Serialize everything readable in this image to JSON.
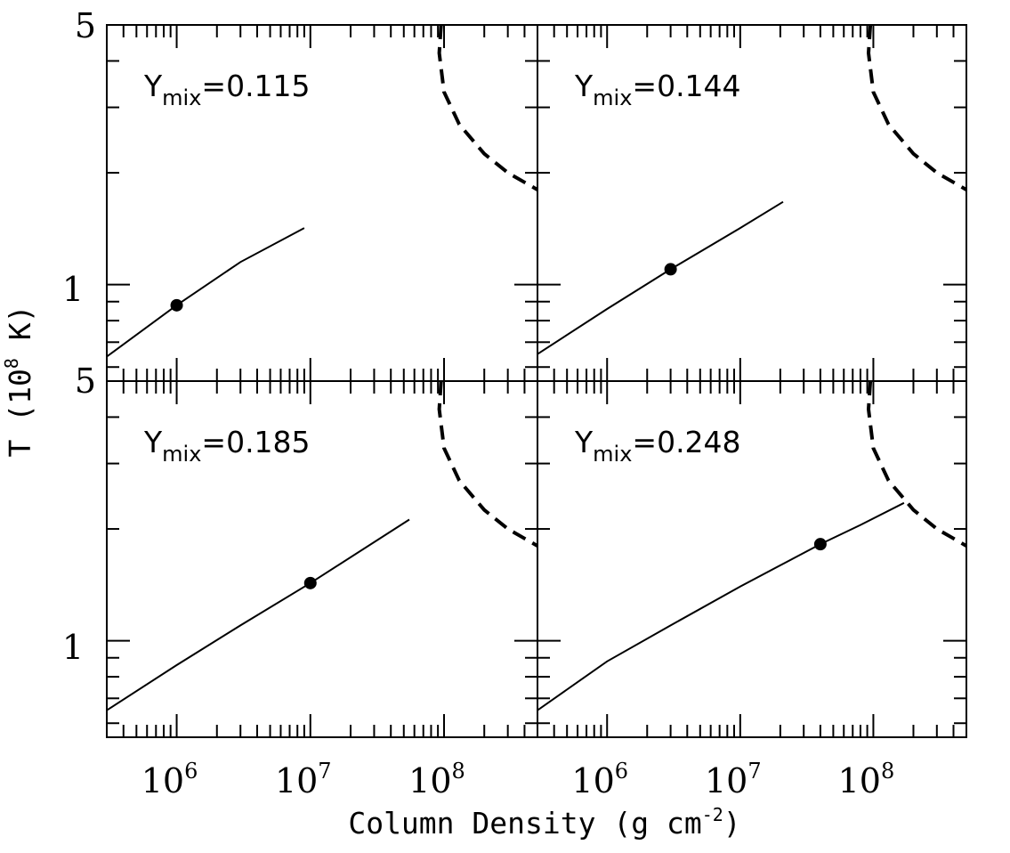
{
  "chart_data": [
    {
      "type": "line",
      "panel": "top-left",
      "label_main": "Y",
      "label_sub": "mix",
      "label_value": "=0.115",
      "xscale": "log",
      "yscale": "log",
      "xlim": [
        300000,
        500000000
      ],
      "ylim": [
        0.55,
        5
      ],
      "series": [
        {
          "style": "solid",
          "x": [
            300000,
            1000000,
            3000000,
            9000000
          ],
          "y": [
            0.64,
            0.88,
            1.15,
            1.42
          ]
        },
        {
          "style": "dashed",
          "x": [
            95000000,
            92000000,
            100000000,
            130000000,
            200000000,
            300000000,
            500000000
          ],
          "y": [
            5.0,
            4.2,
            3.3,
            2.7,
            2.25,
            2.0,
            1.8
          ]
        }
      ],
      "markers": [
        {
          "x": 1000000,
          "y": 0.88
        }
      ]
    },
    {
      "type": "line",
      "panel": "top-right",
      "label_main": "Y",
      "label_sub": "mix",
      "label_value": "=0.144",
      "xscale": "log",
      "yscale": "log",
      "xlim": [
        300000,
        500000000
      ],
      "ylim": [
        0.55,
        5
      ],
      "series": [
        {
          "style": "solid",
          "x": [
            300000,
            1000000,
            3000000,
            10000000,
            21000000
          ],
          "y": [
            0.65,
            0.86,
            1.1,
            1.42,
            1.67
          ]
        },
        {
          "style": "dashed",
          "x": [
            95000000,
            92000000,
            100000000,
            130000000,
            200000000,
            300000000,
            500000000
          ],
          "y": [
            5.0,
            4.2,
            3.3,
            2.7,
            2.25,
            2.0,
            1.8
          ]
        }
      ],
      "markers": [
        {
          "x": 3000000,
          "y": 1.1
        }
      ]
    },
    {
      "type": "line",
      "panel": "bottom-left",
      "label_main": "Y",
      "label_sub": "mix",
      "label_value": "=0.185",
      "xscale": "log",
      "yscale": "log",
      "xlim": [
        300000,
        500000000
      ],
      "ylim": [
        0.55,
        5
      ],
      "xticklabels": [
        "10",
        "10",
        "10"
      ],
      "xtickexps": [
        "6",
        "7",
        "8"
      ],
      "series": [
        {
          "style": "solid",
          "x": [
            300000,
            1000000,
            3000000,
            10000000,
            55000000
          ],
          "y": [
            0.65,
            0.86,
            1.1,
            1.43,
            2.12
          ]
        },
        {
          "style": "dashed",
          "x": [
            95000000,
            92000000,
            100000000,
            130000000,
            200000000,
            300000000,
            500000000
          ],
          "y": [
            5.0,
            4.2,
            3.3,
            2.7,
            2.25,
            2.0,
            1.8
          ]
        }
      ],
      "markers": [
        {
          "x": 10000000,
          "y": 1.43
        }
      ]
    },
    {
      "type": "line",
      "panel": "bottom-right",
      "label_main": "Y",
      "label_sub": "mix",
      "label_value": "=0.248",
      "xscale": "log",
      "yscale": "log",
      "xlim": [
        300000,
        500000000
      ],
      "ylim": [
        0.55,
        5
      ],
      "xticklabels": [
        "10",
        "10",
        "10"
      ],
      "xtickexps": [
        "6",
        "7",
        "8"
      ],
      "series": [
        {
          "style": "solid",
          "x": [
            300000,
            1000000,
            3000000,
            10000000,
            40000000,
            80000000,
            170000000
          ],
          "y": [
            0.65,
            0.88,
            1.1,
            1.4,
            1.82,
            2.05,
            2.35
          ]
        },
        {
          "style": "dashed",
          "x": [
            95000000,
            92000000,
            100000000,
            130000000,
            200000000,
            300000000,
            500000000
          ],
          "y": [
            5.0,
            4.2,
            3.3,
            2.7,
            2.25,
            2.0,
            1.8
          ]
        }
      ],
      "markers": [
        {
          "x": 40000000,
          "y": 1.82
        }
      ]
    }
  ],
  "ytick_labels": {
    "top_row": [
      "5",
      "1"
    ],
    "bottom_row": [
      "5",
      "1"
    ]
  },
  "xlabel": {
    "main": "Column Density (g cm",
    "exp": "-2",
    "close": ")"
  },
  "ylabel": {
    "main": "T (10",
    "exp": "8",
    "close": " K)"
  }
}
